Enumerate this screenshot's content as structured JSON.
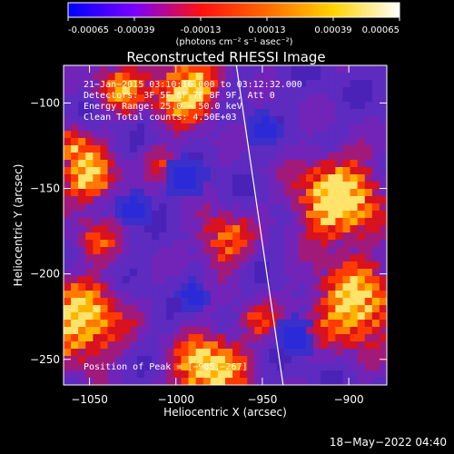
{
  "colorbar": {
    "tick_labels": [
      "-0.00065",
      "-0.00039",
      "-0.00013",
      "0.00013",
      "0.00039",
      "0.00065"
    ],
    "units_label": "(photons cm⁻² s⁻¹ asec⁻²)",
    "gradient_colors": [
      "#0000ff",
      "#7a00ff",
      "#ff1010",
      "#ff6a00",
      "#ffd400",
      "#ffffff"
    ]
  },
  "chart_data": {
    "type": "heatmap",
    "title": "Reconstructed RHESSI Image",
    "xlabel": "Heliocentric X (arcsec)",
    "ylabel": "Heliocentric Y (arcsec)",
    "xlim": [
      -1065,
      -878
    ],
    "ylim": [
      -265,
      -78
    ],
    "xticks": [
      -1050,
      -1000,
      -950,
      -900
    ],
    "xtick_labels": [
      "−1050",
      "−1000",
      "−950",
      "−900"
    ],
    "yticks": [
      -100,
      -150,
      -200,
      -250
    ],
    "ytick_labels": [
      "−100",
      "−150",
      "−200",
      "−250"
    ],
    "annotations": {
      "time_range": "21−Jan−2015 03:10:16.000 to 03:12:32.000",
      "detectors": "Detectors: 3F 5F 6F 7F 8F 9F, Att 0",
      "energy_range": "Energy Range: 25.0 − 50.0 keV",
      "clean_counts": "Clean    Total counts: 4.50E+03",
      "peak_position": "Position of Peak = [−985,−267]"
    },
    "peak": {
      "x": -985,
      "y": -267
    },
    "limb_line": {
      "x1": -965,
      "y1": -78,
      "x2": -938,
      "y2": -265
    },
    "grid": false,
    "legend": "none"
  },
  "footer": {
    "timestamp": "18−May−2022 04:40"
  },
  "colors": {
    "background": "#000000",
    "axes": "#ffffff",
    "text": "#ffffff",
    "limb": "#ffffff"
  }
}
